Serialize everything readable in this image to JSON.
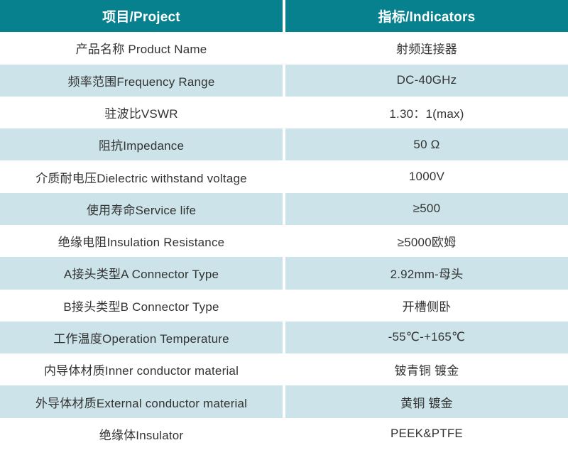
{
  "colors": {
    "header_bg": "#08818f",
    "row_alt_bg": "#cce4e9",
    "row_bg": "#ffffff",
    "header_text": "#ffffff",
    "body_text": "#333333",
    "divider": "#ffffff"
  },
  "table": {
    "columns": [
      {
        "label": "项目/Project"
      },
      {
        "label": "指标/Indicators"
      }
    ],
    "rows": [
      {
        "project": "产品名称 Product Name",
        "indicator": "射频连接器"
      },
      {
        "project": "频率范围Frequency Range",
        "indicator": "DC-40GHz"
      },
      {
        "project": "驻波比VSWR",
        "indicator": "1.30：1(max)"
      },
      {
        "project": "阻抗Impedance",
        "indicator": "50 Ω"
      },
      {
        "project": "介质耐电压Dielectric withstand voltage",
        "indicator": "1000V"
      },
      {
        "project": "使用寿命Service life",
        "indicator": "≥500"
      },
      {
        "project": "绝缘电阻Insulation Resistance",
        "indicator": "≥5000欧姆"
      },
      {
        "project": "A接头类型A Connector Type",
        "indicator": "2.92mm-母头"
      },
      {
        "project": "B接头类型B Connector Type",
        "indicator": "开槽侧卧"
      },
      {
        "project": "工作温度Operation Temperature",
        "indicator": "-55℃-+165℃"
      },
      {
        "project": "内导体材质Inner conductor material",
        "indicator": "铍青铜 镀金"
      },
      {
        "project": "外导体材质External conductor material",
        "indicator": "黄铜 镀金"
      },
      {
        "project": "绝缘体Insulator",
        "indicator": "PEEK&PTFE"
      }
    ]
  }
}
